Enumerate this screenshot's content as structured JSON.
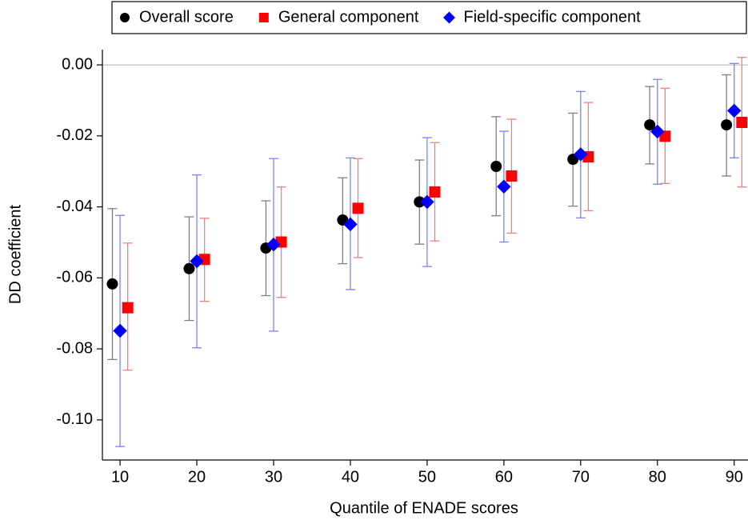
{
  "chart_data": {
    "type": "errorbar",
    "xlabel": "Quantile of ENADE scores",
    "ylabel": "DD coefficient",
    "xlim": [
      7.7,
      91.8
    ],
    "xticks": [
      10,
      20,
      30,
      40,
      50,
      60,
      70,
      80,
      90
    ],
    "ylim": [
      -0.1113,
      0.0043
    ],
    "yticks": [
      {
        "value": 0,
        "label": "0.00"
      },
      {
        "value": -0.02,
        "label": "-0.02"
      },
      {
        "value": -0.04,
        "label": "-0.04"
      },
      {
        "value": -0.06,
        "label": "-0.06"
      },
      {
        "value": -0.08,
        "label": "-0.08"
      },
      {
        "value": -0.1,
        "label": "-0.10"
      }
    ],
    "reference_line": 0,
    "legend": "top",
    "series": [
      {
        "name": "Overall score",
        "color": "#000000",
        "bar_color": "#7f7f7f",
        "marker": "circle",
        "x": [
          9,
          19,
          29,
          39,
          49,
          59,
          69,
          79,
          89
        ],
        "values": [
          -0.0617,
          -0.0574,
          -0.0516,
          -0.0437,
          -0.0386,
          -0.0286,
          -0.0266,
          -0.0169,
          -0.0169
        ],
        "lower": [
          -0.083,
          -0.072,
          -0.065,
          -0.056,
          -0.0505,
          -0.0425,
          -0.0398,
          -0.0279,
          -0.0313
        ],
        "upper": [
          -0.0405,
          -0.0428,
          -0.0383,
          -0.0318,
          -0.0268,
          -0.0146,
          -0.0136,
          -0.0061,
          -0.0028
        ]
      },
      {
        "name": "General component",
        "color": "#ff0000",
        "bar_color": "#f07f7f",
        "marker": "square",
        "x": [
          11,
          21,
          31,
          41,
          51,
          61,
          71,
          81,
          91
        ],
        "values": [
          -0.0684,
          -0.0548,
          -0.0499,
          -0.0404,
          -0.0358,
          -0.0313,
          -0.0259,
          -0.0201,
          -0.0162
        ],
        "lower": [
          -0.086,
          -0.0666,
          -0.0655,
          -0.0543,
          -0.0496,
          -0.0474,
          -0.0411,
          -0.0334,
          -0.0344
        ],
        "upper": [
          -0.0502,
          -0.0432,
          -0.0344,
          -0.0264,
          -0.0219,
          -0.0153,
          -0.0106,
          -0.0066,
          0.0021
        ]
      },
      {
        "name": "Field-specific component",
        "color": "#0000ff",
        "bar_color": "#7f7fff",
        "marker": "diamond",
        "x": [
          10,
          20,
          30,
          40,
          50,
          60,
          70,
          80,
          90
        ],
        "values": [
          -0.0749,
          -0.0553,
          -0.0506,
          -0.0449,
          -0.0386,
          -0.0343,
          -0.0252,
          -0.0188,
          -0.0129
        ],
        "lower": [
          -0.1075,
          -0.0797,
          -0.075,
          -0.0633,
          -0.0568,
          -0.0499,
          -0.0431,
          -0.0336,
          -0.0262
        ],
        "upper": [
          -0.0424,
          -0.031,
          -0.0264,
          -0.0262,
          -0.0205,
          -0.0187,
          -0.0075,
          -0.0041,
          0.0004
        ]
      }
    ]
  }
}
